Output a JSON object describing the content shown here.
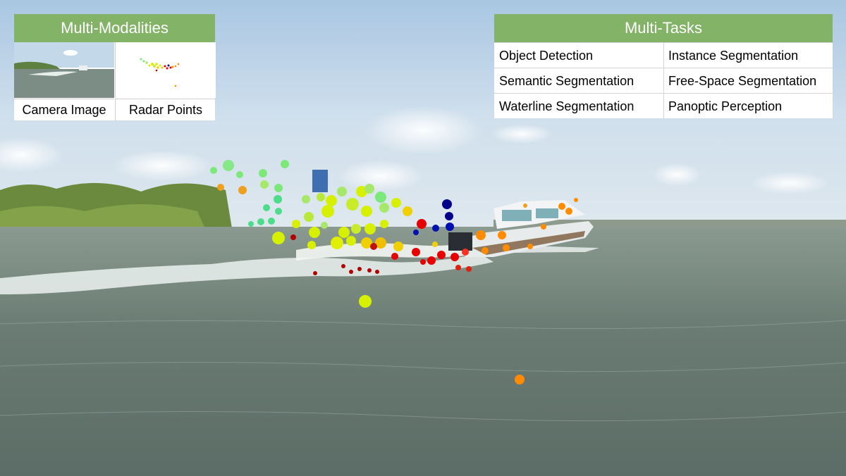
{
  "multi_modalities": {
    "title": "Multi-Modalities",
    "camera_label": "Camera Image",
    "radar_label": "Radar Points"
  },
  "multi_tasks": {
    "title": "Multi-Tasks",
    "items": [
      "Object Detection",
      "Instance Segmentation",
      "Semantic Segmentation",
      "Free-Space Segmentation",
      "Waterline Segmentation",
      "Panoptic Perception"
    ]
  },
  "colors": {
    "header_green": "#82b366",
    "radar_far": "#2ecc71",
    "radar_mid": "#d7f000",
    "radar_near": "#ff8c00",
    "radar_close": "#e60000",
    "radar_closest": "#00008b"
  }
}
